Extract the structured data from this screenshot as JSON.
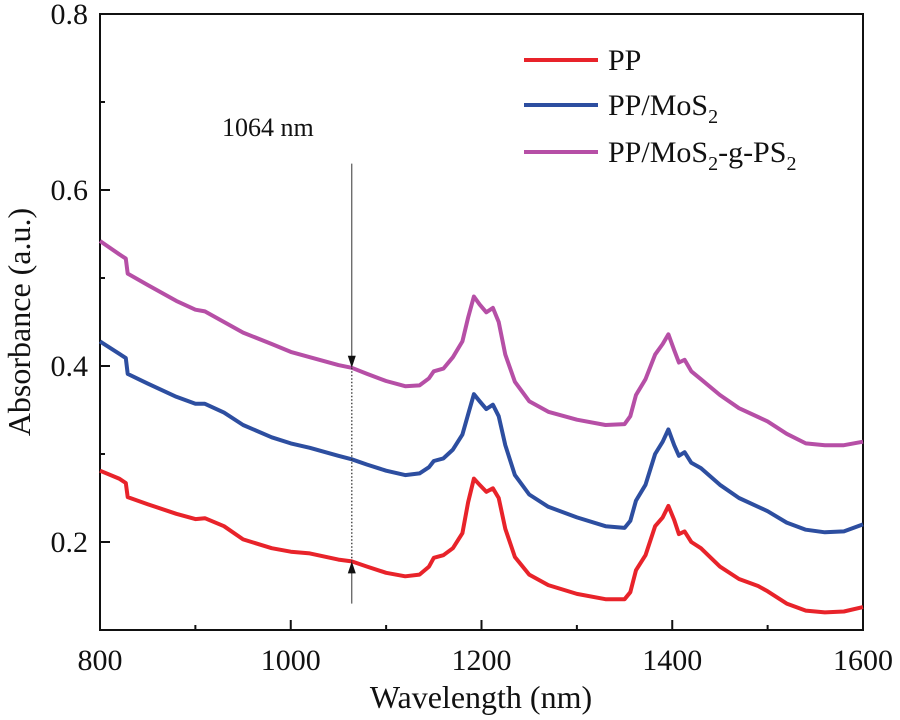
{
  "chart_data": {
    "type": "line",
    "xlabel": "Wavelength (nm)",
    "ylabel": "Absorbance (a.u.)",
    "xlim": [
      800,
      1600
    ],
    "ylim": [
      0.1,
      0.8
    ],
    "x_ticks": [
      800,
      1000,
      1200,
      1400,
      1600
    ],
    "x_tick_labels": [
      "800",
      "1000",
      "1200",
      "1400",
      "1600"
    ],
    "y_ticks": [
      0.2,
      0.4,
      0.6,
      0.8
    ],
    "y_tick_labels": [
      "0.2",
      "0.4",
      "0.6",
      "0.8"
    ],
    "legend_position": "top-right",
    "annotation": {
      "text": "1064 nm",
      "x": 1064,
      "y_start": 0.63,
      "y_end": 0.13,
      "upper_target": 0.398,
      "lower_target": 0.178
    },
    "series": [
      {
        "name": "PP",
        "label_main": "PP",
        "label_sub": "",
        "label_tail": "",
        "label_sub2": "",
        "color": "#e8232a",
        "points": [
          [
            800,
            0.281
          ],
          [
            820,
            0.272
          ],
          [
            827,
            0.267
          ],
          [
            829,
            0.251
          ],
          [
            850,
            0.243
          ],
          [
            880,
            0.232
          ],
          [
            900,
            0.226
          ],
          [
            910,
            0.227
          ],
          [
            930,
            0.218
          ],
          [
            950,
            0.203
          ],
          [
            980,
            0.193
          ],
          [
            1000,
            0.189
          ],
          [
            1020,
            0.187
          ],
          [
            1050,
            0.18
          ],
          [
            1064,
            0.178
          ],
          [
            1080,
            0.172
          ],
          [
            1100,
            0.165
          ],
          [
            1120,
            0.161
          ],
          [
            1135,
            0.163
          ],
          [
            1145,
            0.172
          ],
          [
            1150,
            0.182
          ],
          [
            1160,
            0.185
          ],
          [
            1170,
            0.193
          ],
          [
            1180,
            0.21
          ],
          [
            1186,
            0.245
          ],
          [
            1192,
            0.272
          ],
          [
            1198,
            0.265
          ],
          [
            1205,
            0.257
          ],
          [
            1212,
            0.261
          ],
          [
            1218,
            0.25
          ],
          [
            1225,
            0.215
          ],
          [
            1235,
            0.183
          ],
          [
            1250,
            0.163
          ],
          [
            1270,
            0.151
          ],
          [
            1300,
            0.141
          ],
          [
            1330,
            0.135
          ],
          [
            1350,
            0.135
          ],
          [
            1356,
            0.143
          ],
          [
            1362,
            0.168
          ],
          [
            1372,
            0.185
          ],
          [
            1382,
            0.218
          ],
          [
            1390,
            0.228
          ],
          [
            1396,
            0.241
          ],
          [
            1402,
            0.225
          ],
          [
            1407,
            0.209
          ],
          [
            1413,
            0.212
          ],
          [
            1420,
            0.2
          ],
          [
            1430,
            0.193
          ],
          [
            1450,
            0.172
          ],
          [
            1470,
            0.158
          ],
          [
            1490,
            0.15
          ],
          [
            1500,
            0.144
          ],
          [
            1520,
            0.13
          ],
          [
            1540,
            0.122
          ],
          [
            1560,
            0.12
          ],
          [
            1580,
            0.121
          ],
          [
            1600,
            0.126
          ]
        ]
      },
      {
        "name": "PP/MoS2",
        "label_main": "PP/MoS",
        "label_sub": "2",
        "label_tail": "",
        "label_sub2": "",
        "color": "#2d4ea0",
        "points": [
          [
            800,
            0.428
          ],
          [
            820,
            0.414
          ],
          [
            827,
            0.409
          ],
          [
            829,
            0.391
          ],
          [
            850,
            0.38
          ],
          [
            880,
            0.365
          ],
          [
            900,
            0.357
          ],
          [
            910,
            0.357
          ],
          [
            930,
            0.347
          ],
          [
            950,
            0.333
          ],
          [
            980,
            0.319
          ],
          [
            1000,
            0.312
          ],
          [
            1020,
            0.307
          ],
          [
            1050,
            0.298
          ],
          [
            1064,
            0.294
          ],
          [
            1080,
            0.288
          ],
          [
            1100,
            0.281
          ],
          [
            1120,
            0.276
          ],
          [
            1135,
            0.278
          ],
          [
            1145,
            0.285
          ],
          [
            1150,
            0.292
          ],
          [
            1160,
            0.295
          ],
          [
            1170,
            0.305
          ],
          [
            1180,
            0.322
          ],
          [
            1186,
            0.345
          ],
          [
            1192,
            0.368
          ],
          [
            1198,
            0.36
          ],
          [
            1205,
            0.351
          ],
          [
            1212,
            0.356
          ],
          [
            1218,
            0.343
          ],
          [
            1225,
            0.31
          ],
          [
            1235,
            0.276
          ],
          [
            1250,
            0.254
          ],
          [
            1270,
            0.24
          ],
          [
            1300,
            0.228
          ],
          [
            1330,
            0.218
          ],
          [
            1350,
            0.216
          ],
          [
            1356,
            0.224
          ],
          [
            1362,
            0.247
          ],
          [
            1372,
            0.265
          ],
          [
            1382,
            0.3
          ],
          [
            1390,
            0.314
          ],
          [
            1396,
            0.328
          ],
          [
            1402,
            0.31
          ],
          [
            1407,
            0.298
          ],
          [
            1413,
            0.302
          ],
          [
            1420,
            0.29
          ],
          [
            1430,
            0.284
          ],
          [
            1450,
            0.265
          ],
          [
            1470,
            0.25
          ],
          [
            1490,
            0.24
          ],
          [
            1500,
            0.235
          ],
          [
            1520,
            0.222
          ],
          [
            1540,
            0.214
          ],
          [
            1560,
            0.211
          ],
          [
            1580,
            0.212
          ],
          [
            1600,
            0.22
          ]
        ]
      },
      {
        "name": "PP/MoS2-g-PS2",
        "label_main": "PP/MoS",
        "label_sub": "2",
        "label_tail": "-g-PS",
        "label_sub2": "2",
        "color": "#b64fa6",
        "points": [
          [
            800,
            0.542
          ],
          [
            820,
            0.527
          ],
          [
            827,
            0.522
          ],
          [
            829,
            0.505
          ],
          [
            850,
            0.492
          ],
          [
            880,
            0.474
          ],
          [
            900,
            0.464
          ],
          [
            910,
            0.462
          ],
          [
            930,
            0.45
          ],
          [
            950,
            0.438
          ],
          [
            980,
            0.425
          ],
          [
            1000,
            0.416
          ],
          [
            1020,
            0.41
          ],
          [
            1050,
            0.401
          ],
          [
            1064,
            0.398
          ],
          [
            1080,
            0.391
          ],
          [
            1100,
            0.383
          ],
          [
            1120,
            0.377
          ],
          [
            1135,
            0.378
          ],
          [
            1145,
            0.386
          ],
          [
            1150,
            0.394
          ],
          [
            1160,
            0.397
          ],
          [
            1170,
            0.41
          ],
          [
            1180,
            0.428
          ],
          [
            1186,
            0.455
          ],
          [
            1192,
            0.479
          ],
          [
            1198,
            0.47
          ],
          [
            1205,
            0.461
          ],
          [
            1212,
            0.466
          ],
          [
            1218,
            0.45
          ],
          [
            1225,
            0.413
          ],
          [
            1235,
            0.382
          ],
          [
            1250,
            0.36
          ],
          [
            1270,
            0.348
          ],
          [
            1300,
            0.339
          ],
          [
            1330,
            0.333
          ],
          [
            1350,
            0.334
          ],
          [
            1356,
            0.343
          ],
          [
            1362,
            0.367
          ],
          [
            1372,
            0.385
          ],
          [
            1382,
            0.413
          ],
          [
            1390,
            0.425
          ],
          [
            1396,
            0.436
          ],
          [
            1402,
            0.418
          ],
          [
            1407,
            0.404
          ],
          [
            1413,
            0.407
          ],
          [
            1420,
            0.394
          ],
          [
            1430,
            0.385
          ],
          [
            1450,
            0.367
          ],
          [
            1470,
            0.352
          ],
          [
            1490,
            0.342
          ],
          [
            1500,
            0.337
          ],
          [
            1520,
            0.323
          ],
          [
            1540,
            0.312
          ],
          [
            1560,
            0.31
          ],
          [
            1580,
            0.31
          ],
          [
            1600,
            0.314
          ]
        ]
      }
    ]
  }
}
